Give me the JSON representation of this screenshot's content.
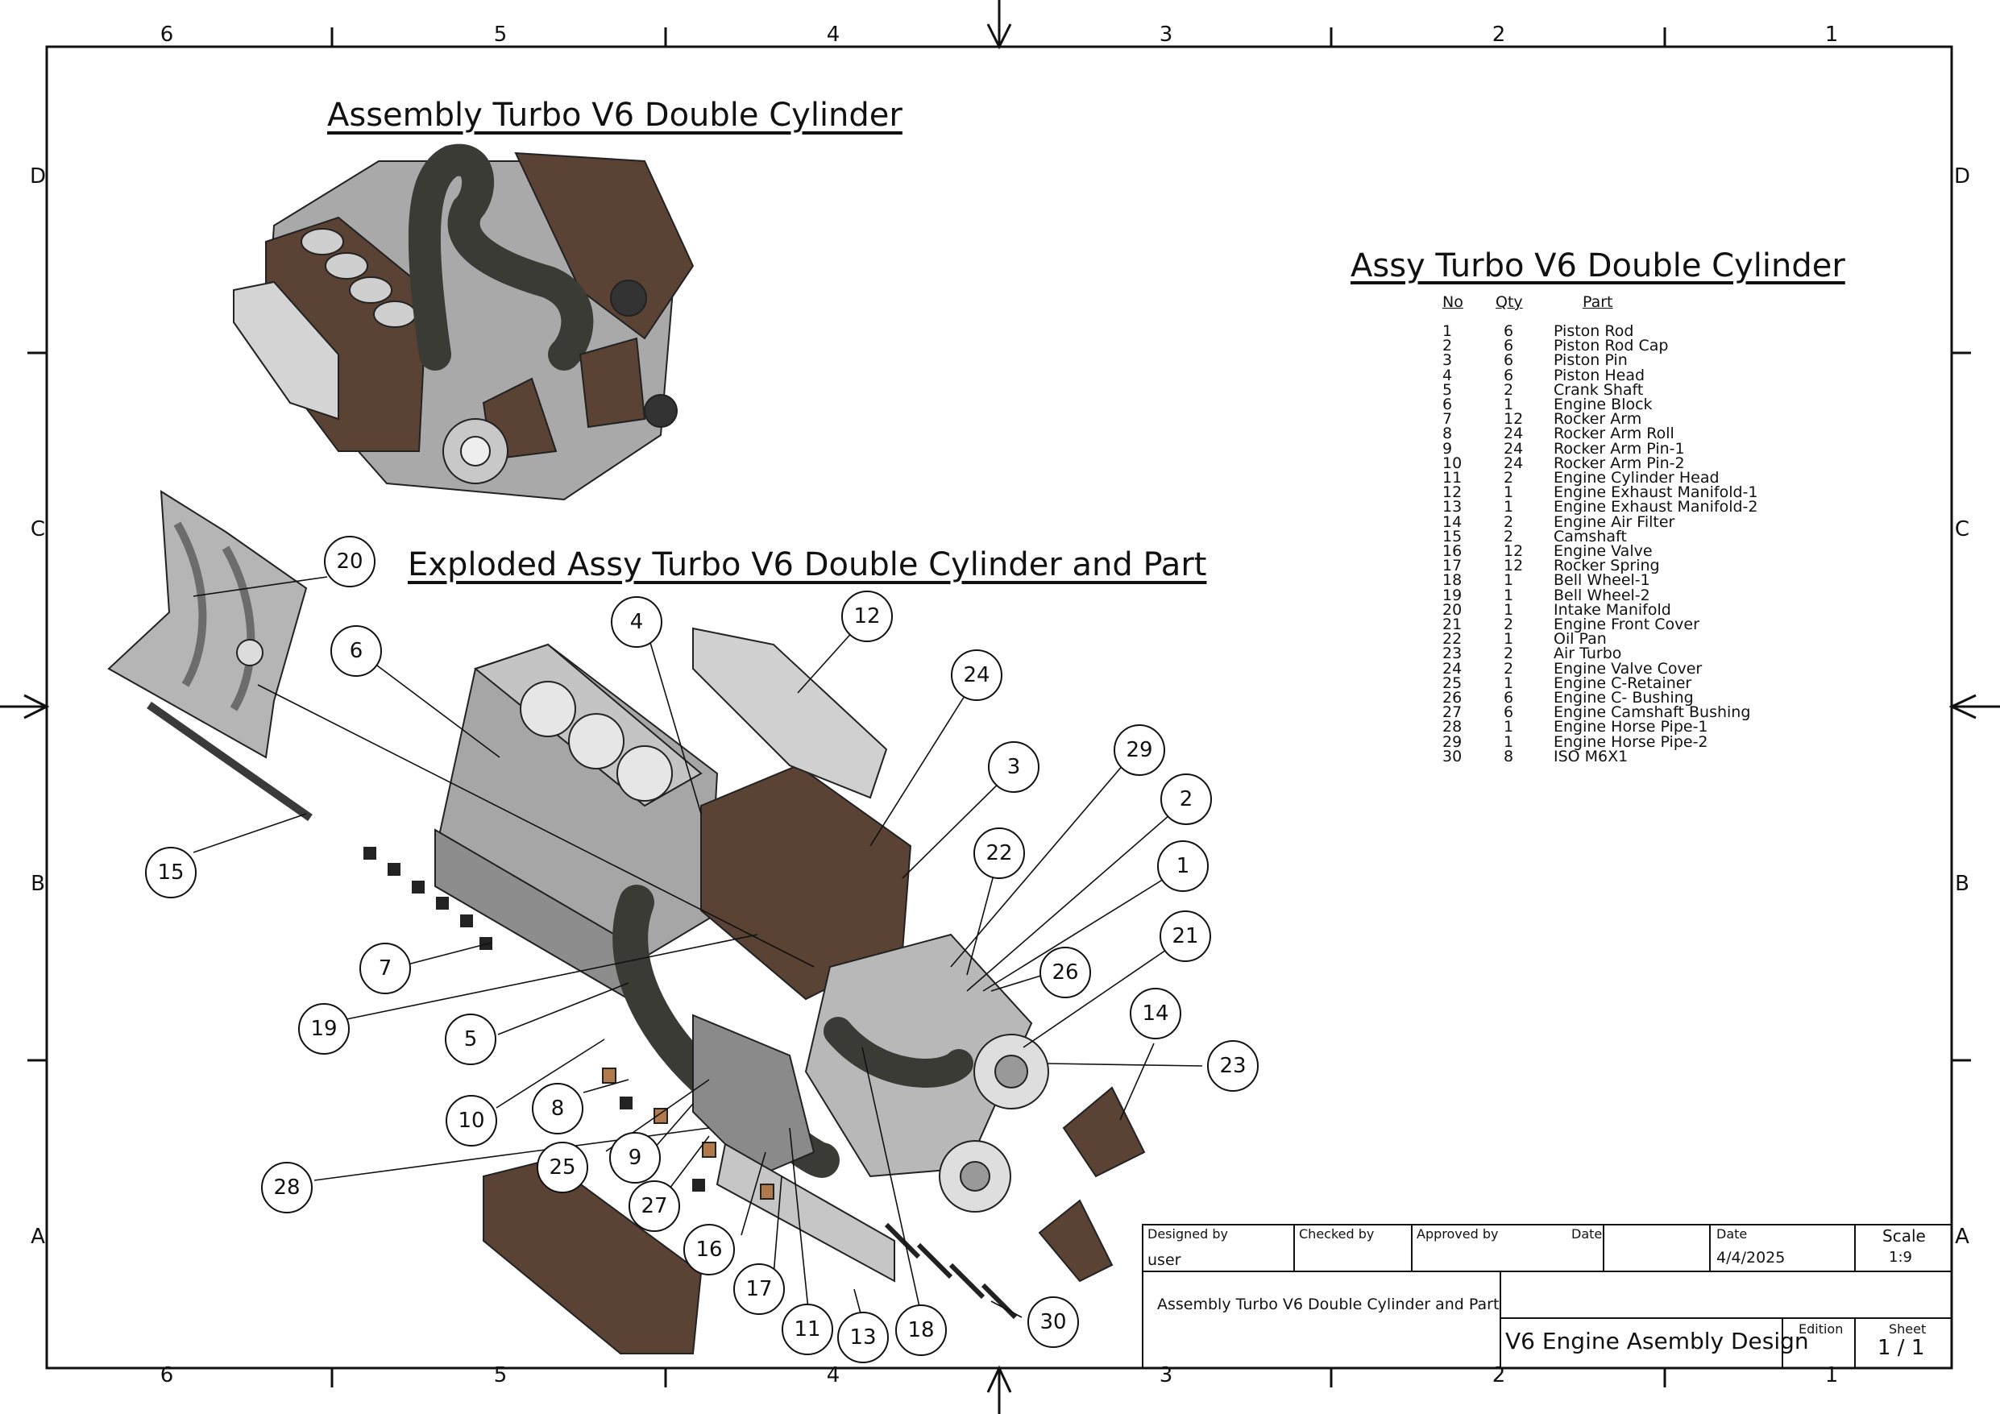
{
  "titles": {
    "assembly": "Assembly Turbo V6 Double Cylinder",
    "exploded": "Exploded Assy Turbo V6 Double Cylinder and Part",
    "bom": "Assy Turbo V6 Double Cylinder"
  },
  "bom_headers": {
    "no": "No",
    "qty": "Qty",
    "part": "Part"
  },
  "bom": [
    {
      "no": "1",
      "qty": "6",
      "part": "Piston Rod"
    },
    {
      "no": "2",
      "qty": "6",
      "part": "Piston Rod Cap"
    },
    {
      "no": "3",
      "qty": "6",
      "part": "Piston Pin"
    },
    {
      "no": "4",
      "qty": "6",
      "part": "Piston Head"
    },
    {
      "no": "5",
      "qty": "2",
      "part": "Crank Shaft"
    },
    {
      "no": "6",
      "qty": "1",
      "part": "Engine Block"
    },
    {
      "no": "7",
      "qty": "12",
      "part": "Rocker Arm"
    },
    {
      "no": "8",
      "qty": "24",
      "part": "Rocker Arm Roll"
    },
    {
      "no": "9",
      "qty": "24",
      "part": "Rocker Arm Pin-1"
    },
    {
      "no": "10",
      "qty": "24",
      "part": "Rocker Arm Pin-2"
    },
    {
      "no": "11",
      "qty": "2",
      "part": "Engine Cylinder Head"
    },
    {
      "no": "12",
      "qty": "1",
      "part": "Engine Exhaust Manifold-1"
    },
    {
      "no": "13",
      "qty": "1",
      "part": "Engine Exhaust Manifold-2"
    },
    {
      "no": "14",
      "qty": "2",
      "part": "Engine Air Filter"
    },
    {
      "no": "15",
      "qty": "2",
      "part": "Camshaft"
    },
    {
      "no": "16",
      "qty": "12",
      "part": "Engine Valve"
    },
    {
      "no": "17",
      "qty": "12",
      "part": "Rocker Spring"
    },
    {
      "no": "18",
      "qty": "1",
      "part": "Bell Wheel-1"
    },
    {
      "no": "19",
      "qty": "1",
      "part": "Bell Wheel-2"
    },
    {
      "no": "20",
      "qty": "1",
      "part": "Intake Manifold"
    },
    {
      "no": "21",
      "qty": "2",
      "part": "Engine Front Cover"
    },
    {
      "no": "22",
      "qty": "1",
      "part": "Oil Pan"
    },
    {
      "no": "23",
      "qty": "2",
      "part": "Air Turbo"
    },
    {
      "no": "24",
      "qty": "2",
      "part": "Engine Valve Cover"
    },
    {
      "no": "25",
      "qty": "1",
      "part": "Engine C-Retainer"
    },
    {
      "no": "26",
      "qty": "6",
      "part": "Engine C- Bushing"
    },
    {
      "no": "27",
      "qty": "6",
      "part": "Engine Camshaft Bushing"
    },
    {
      "no": "28",
      "qty": "1",
      "part": "Engine Horse Pipe-1"
    },
    {
      "no": "29",
      "qty": "1",
      "part": "Engine Horse Pipe-2"
    },
    {
      "no": "30",
      "qty": "8",
      "part": "ISO M6X1"
    }
  ],
  "balloons": [
    "1",
    "2",
    "3",
    "4",
    "5",
    "6",
    "7",
    "8",
    "9",
    "10",
    "11",
    "12",
    "13",
    "14",
    "15",
    "16",
    "17",
    "18",
    "19",
    "20",
    "21",
    "22",
    "23",
    "24",
    "25",
    "26",
    "27",
    "28",
    "29",
    "30"
  ],
  "grid": {
    "columns": [
      "6",
      "5",
      "4",
      "3",
      "2",
      "1"
    ],
    "rows": [
      "D",
      "C",
      "B",
      "A"
    ]
  },
  "title_block": {
    "designed_by_label": "Designed by",
    "designed_by": "user",
    "checked_by_label": "Checked by",
    "approved_by_label": "Approved by",
    "date_label_1": "Date",
    "date_label_2": "Date",
    "date": "4/4/2025",
    "scale_label": "Scale",
    "scale": "1:9",
    "drawing_title": "Assembly Turbo V6 Double Cylinder and Part",
    "project": "V6 Engine Asembly Design",
    "edition_label": "Edition",
    "sheet_label": "Sheet",
    "sheet": "1 / 1"
  },
  "colors": {
    "brown": "#5a4234",
    "dark_hose": "#3a3b35",
    "metal": "#b9b9b9",
    "line": "#111111"
  }
}
